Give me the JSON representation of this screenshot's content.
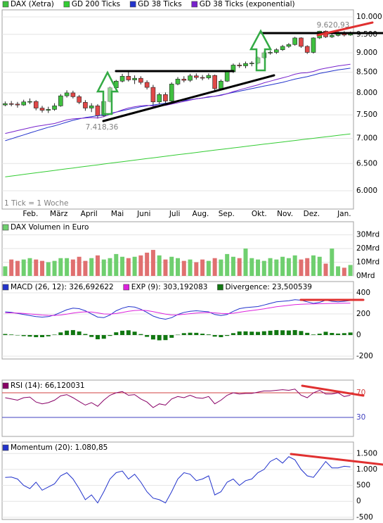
{
  "chart_data": [
    {
      "type": "candlestick",
      "log_scale": true,
      "grid": true,
      "up_color": "#3fbf3f",
      "down_color": "#e04848",
      "xlim": [
        -0.5,
        56.5
      ],
      "xticks": [
        {
          "value": 4.1,
          "label": "Feb."
        },
        {
          "value": 8.7,
          "label": "März"
        },
        {
          "value": 13.6,
          "label": "April"
        },
        {
          "value": 18.2,
          "label": "Mai"
        },
        {
          "value": 22.5,
          "label": "Juni"
        },
        {
          "value": 27.5,
          "label": "Juli"
        },
        {
          "value": 31.7,
          "label": "Aug."
        },
        {
          "value": 35.9,
          "label": "Sep."
        },
        {
          "value": 41.2,
          "label": "Okt."
        },
        {
          "value": 45.4,
          "label": "Nov."
        },
        {
          "value": 49.7,
          "label": "Dez."
        },
        {
          "value": 55,
          "label": "Jan."
        }
      ],
      "ylim": [
        5686,
        10209
      ],
      "yticks": [
        {
          "value": 10000,
          "label": "10.000"
        },
        {
          "value": 9500,
          "label": "9.500"
        },
        {
          "value": 9000,
          "label": "9.000"
        },
        {
          "value": 8500,
          "label": "8.500"
        },
        {
          "value": 8000,
          "label": "8.000"
        },
        {
          "value": 7500,
          "label": "7.500"
        },
        {
          "value": 7000,
          "label": "7.000"
        },
        {
          "value": 6500,
          "label": "6.500"
        },
        {
          "value": 6000,
          "label": "6.000"
        }
      ],
      "annotations": [
        "7.418,36",
        "9.620,93",
        "1 Tick = 1 Woche"
      ],
      "series": [
        {
          "name": "DAX (Xetra)",
          "color": "#3fbf3f",
          "open": [
            7720,
            7750,
            7740,
            7720,
            7790,
            7800,
            7650,
            7600,
            7620,
            7700,
            7930,
            8000,
            7910,
            7780,
            7650,
            7700,
            7480,
            7800,
            8120,
            8280,
            8400,
            8310,
            8350,
            8250,
            8130,
            7790,
            7960,
            7810,
            8210,
            8330,
            8300,
            8410,
            8370,
            8360,
            8420,
            8100,
            8280,
            8510,
            8680,
            8660,
            8720,
            8730,
            8870,
            9000,
            9010,
            9080,
            9170,
            9220,
            9400,
            9170,
            9010,
            9400,
            9590,
            9430,
            9470,
            9550,
            9480
          ],
          "high": [
            7800,
            7810,
            7790,
            7840,
            7870,
            7830,
            7700,
            7680,
            7760,
            7970,
            8060,
            8050,
            7950,
            7830,
            7760,
            7740,
            7830,
            8150,
            8310,
            8460,
            8530,
            8420,
            8400,
            8300,
            8190,
            8000,
            8010,
            8250,
            8380,
            8400,
            8460,
            8470,
            8430,
            8470,
            8440,
            8320,
            8530,
            8720,
            8740,
            8770,
            8780,
            8900,
            9040,
            9060,
            9120,
            9210,
            9260,
            9430,
            9420,
            9200,
            9420,
            9600,
            9610,
            9520,
            9620.93,
            9590,
            9580
          ],
          "low": [
            7690,
            7690,
            7660,
            7700,
            7740,
            7600,
            7550,
            7540,
            7590,
            7680,
            7890,
            7870,
            7740,
            7590,
            7560,
            7418.36,
            7450,
            7780,
            8090,
            8250,
            8270,
            8210,
            8200,
            8080,
            7650,
            7730,
            7760,
            7790,
            8180,
            8250,
            8260,
            8320,
            8300,
            8320,
            8060,
            8080,
            8260,
            8480,
            8610,
            8600,
            8650,
            8700,
            8840,
            8950,
            8970,
            9050,
            9130,
            9190,
            9130,
            8970,
            8980,
            9370,
            9400,
            9400,
            9440,
            9440,
            9460
          ],
          "close": [
            7750,
            7740,
            7720,
            7790,
            7800,
            7650,
            7600,
            7620,
            7700,
            7930,
            8000,
            7910,
            7780,
            7650,
            7700,
            7480,
            7800,
            8120,
            8280,
            8400,
            8310,
            8350,
            8250,
            8130,
            7790,
            7960,
            7810,
            8210,
            8330,
            8300,
            8410,
            8370,
            8360,
            8420,
            8100,
            8280,
            8510,
            8680,
            8660,
            8720,
            8730,
            8870,
            9000,
            9010,
            9080,
            9170,
            9220,
            9400,
            9170,
            9010,
            9400,
            9590,
            9430,
            9470,
            9550,
            9480,
            9530
          ]
        },
        {
          "name": "GD 200 Ticks",
          "color": "#33cc33",
          "values": [
            6250,
            6265,
            6280,
            6295,
            6310,
            6325,
            6340,
            6355,
            6370,
            6385,
            6400,
            6415,
            6430,
            6445,
            6460,
            6475,
            6490,
            6505,
            6520,
            6535,
            6550,
            6565,
            6580,
            6595,
            6610,
            6625,
            6640,
            6655,
            6670,
            6685,
            6700,
            6715,
            6730,
            6745,
            6760,
            6775,
            6790,
            6805,
            6820,
            6835,
            6850,
            6865,
            6880,
            6895,
            6910,
            6925,
            6940,
            6955,
            6970,
            6985,
            7000,
            7015,
            7030,
            7045,
            7060,
            7075,
            7090
          ]
        },
        {
          "name": "GD 38 Ticks",
          "color": "#2233cc",
          "values": [
            6950,
            6990,
            7030,
            7070,
            7110,
            7150,
            7190,
            7230,
            7260,
            7300,
            7340,
            7380,
            7410,
            7440,
            7460,
            7480,
            7500,
            7530,
            7560,
            7590,
            7620,
            7650,
            7680,
            7700,
            7720,
            7740,
            7760,
            7780,
            7800,
            7820,
            7840,
            7860,
            7880,
            7900,
            7920,
            7950,
            7980,
            8010,
            8040,
            8070,
            8100,
            8130,
            8160,
            8190,
            8220,
            8250,
            8290,
            8330,
            8360,
            8390,
            8430,
            8470,
            8500,
            8530,
            8560,
            8580,
            8600
          ]
        },
        {
          "name": "GD 38 Ticks (exponential)",
          "color": "#7722cc",
          "values": [
            7100,
            7130,
            7160,
            7190,
            7220,
            7250,
            7270,
            7290,
            7310,
            7350,
            7390,
            7410,
            7420,
            7430,
            7440,
            7430,
            7460,
            7510,
            7560,
            7610,
            7650,
            7680,
            7700,
            7710,
            7700,
            7710,
            7710,
            7740,
            7770,
            7800,
            7830,
            7860,
            7880,
            7910,
            7920,
            7940,
            7980,
            8030,
            8070,
            8110,
            8150,
            8190,
            8240,
            8280,
            8320,
            8360,
            8400,
            8450,
            8480,
            8490,
            8520,
            8570,
            8600,
            8630,
            8660,
            8680,
            8700
          ]
        }
      ]
    },
    {
      "type": "bar",
      "grid": true,
      "down_color": "#e07070",
      "ylim": [
        0,
        39.6
      ],
      "yticks": [
        {
          "value": 30,
          "label": "30Mrd"
        },
        {
          "value": 20,
          "label": "20Mrd"
        },
        {
          "value": 10,
          "label": "10Mrd"
        },
        {
          "value": 0,
          "label": "0Mrd"
        }
      ],
      "series": [
        {
          "name": "DAX Volumen in Euro",
          "color": "#6fcf6f",
          "values": [
            7,
            12,
            11,
            12,
            13,
            12,
            11,
            10,
            11,
            13,
            13,
            12,
            14,
            11,
            13,
            15,
            12,
            13,
            16,
            14,
            13,
            14,
            15,
            17,
            19,
            15,
            12,
            14,
            13,
            11,
            12,
            10,
            12,
            11,
            13,
            12,
            16,
            14,
            13,
            20,
            13,
            12,
            11,
            13,
            12,
            14,
            13,
            15,
            12,
            13,
            15,
            14,
            9,
            20,
            7,
            6,
            8
          ]
        }
      ]
    },
    {
      "type": "line",
      "grid": true,
      "ylim": [
        -227,
        507
      ],
      "yticks": [
        400,
        200,
        0,
        -200
      ],
      "series": [
        {
          "name": "MACD (26, 12): 326,692622",
          "color": "#2233cc",
          "values": [
            220,
            215,
            205,
            195,
            185,
            175,
            170,
            175,
            190,
            215,
            240,
            255,
            250,
            230,
            200,
            170,
            165,
            190,
            230,
            255,
            270,
            265,
            245,
            215,
            180,
            160,
            150,
            165,
            195,
            215,
            225,
            230,
            225,
            220,
            195,
            185,
            195,
            225,
            250,
            260,
            265,
            270,
            285,
            300,
            315,
            320,
            325,
            335,
            330,
            315,
            300,
            310,
            330,
            320,
            315,
            320,
            327
          ]
        },
        {
          "name": "EXP (9): 303,192083",
          "color": "#dd22dd",
          "values": [
            210,
            210,
            208,
            205,
            200,
            195,
            190,
            187,
            186,
            190,
            198,
            208,
            216,
            220,
            218,
            210,
            200,
            198,
            204,
            214,
            225,
            233,
            236,
            232,
            222,
            210,
            198,
            191,
            192,
            197,
            203,
            209,
            212,
            214,
            210,
            205,
            203,
            207,
            216,
            225,
            233,
            240,
            249,
            259,
            268,
            275,
            282,
            288,
            292,
            294,
            295,
            297,
            299,
            300,
            301,
            302,
            303
          ]
        },
        {
          "name": "Divergence: 23,500539",
          "color": "#117711",
          "style": "bar",
          "values": [
            10,
            5,
            -3,
            -10,
            -15,
            -20,
            -20,
            -12,
            4,
            25,
            42,
            47,
            34,
            10,
            -18,
            -40,
            -35,
            -8,
            26,
            41,
            45,
            32,
            9,
            -17,
            -42,
            -50,
            -48,
            -26,
            3,
            18,
            22,
            21,
            13,
            6,
            -15,
            -20,
            -8,
            18,
            34,
            35,
            32,
            30,
            36,
            41,
            47,
            45,
            43,
            47,
            38,
            21,
            5,
            13,
            31,
            20,
            14,
            18,
            24
          ]
        }
      ]
    },
    {
      "type": "line",
      "ylim": [
        -0.9,
        90.6
      ],
      "yticks": [
        70,
        30
      ],
      "ytick_colors": [
        "#d04040",
        "#4040c0"
      ],
      "series": [
        {
          "name": "RSI (14): 66,120031",
          "color": "#880066",
          "values": [
            62,
            60,
            58,
            62,
            63,
            55,
            52,
            54,
            58,
            65,
            67,
            62,
            56,
            50,
            54,
            48,
            58,
            66,
            70,
            72,
            66,
            67,
            60,
            55,
            46,
            52,
            50,
            60,
            64,
            62,
            66,
            62,
            61,
            64,
            52,
            58,
            66,
            70,
            68,
            69,
            69,
            71,
            73,
            73,
            74,
            75,
            74,
            76,
            66,
            62,
            70,
            74,
            68,
            68,
            70,
            64,
            66
          ]
        }
      ]
    },
    {
      "type": "line",
      "grid": true,
      "ylim": [
        -570,
        1860
      ],
      "yticks": [
        {
          "value": 1500,
          "label": "1.500"
        },
        {
          "value": 1000,
          "label": "1.000"
        },
        500,
        0,
        -500
      ],
      "series": [
        {
          "name": "Momentum (20): 1.080,85",
          "color": "#2233cc",
          "values": [
            750,
            760,
            700,
            500,
            400,
            600,
            350,
            450,
            550,
            800,
            900,
            700,
            400,
            50,
            200,
            -50,
            300,
            700,
            900,
            950,
            700,
            850,
            600,
            300,
            100,
            50,
            -50,
            300,
            700,
            900,
            850,
            650,
            700,
            800,
            200,
            300,
            600,
            700,
            500,
            650,
            700,
            900,
            1000,
            1250,
            1350,
            1200,
            1400,
            1300,
            1000,
            800,
            750,
            1000,
            1250,
            1050,
            1050,
            1100,
            1080.85
          ]
        }
      ]
    }
  ]
}
